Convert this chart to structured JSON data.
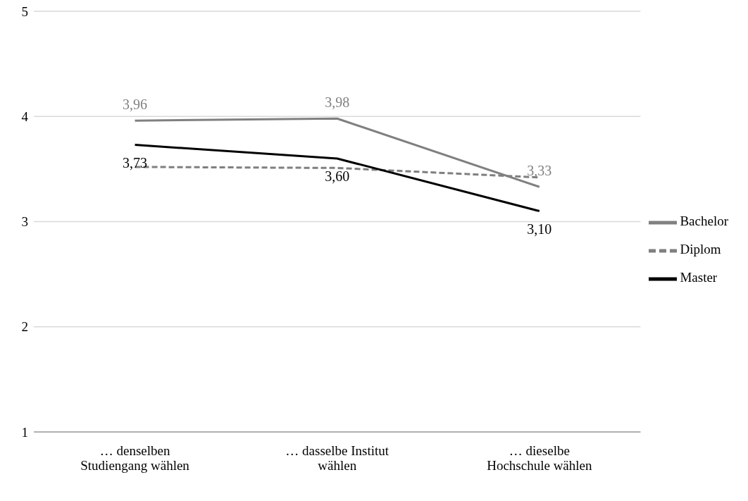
{
  "chart_data": {
    "type": "line",
    "categories": [
      "… denselben Studiengang wählen",
      "… dasselbe Institut wählen",
      "… dieselbe Hochschule wählen"
    ],
    "series": [
      {
        "name": "Diplom",
        "color": "#7f7f7f",
        "line_style": "dashed",
        "values": [
          3.52,
          3.51,
          3.42
        ]
      },
      {
        "name": "Bachelor",
        "color": "#808080",
        "line_style": "solid",
        "values": [
          3.96,
          3.98,
          3.33
        ],
        "value_labels": [
          "3,96",
          "3,98",
          "3,33"
        ]
      },
      {
        "name": "Master",
        "color": "#000000",
        "line_style": "solid",
        "values": [
          3.73,
          3.6,
          3.1
        ],
        "value_labels": [
          "3,73",
          "3,60",
          "3,10"
        ]
      }
    ],
    "ylim": [
      1,
      5
    ],
    "yticks": [
      1,
      2,
      3,
      4,
      5
    ],
    "grid": "y",
    "legend": "right",
    "marker": "none"
  }
}
